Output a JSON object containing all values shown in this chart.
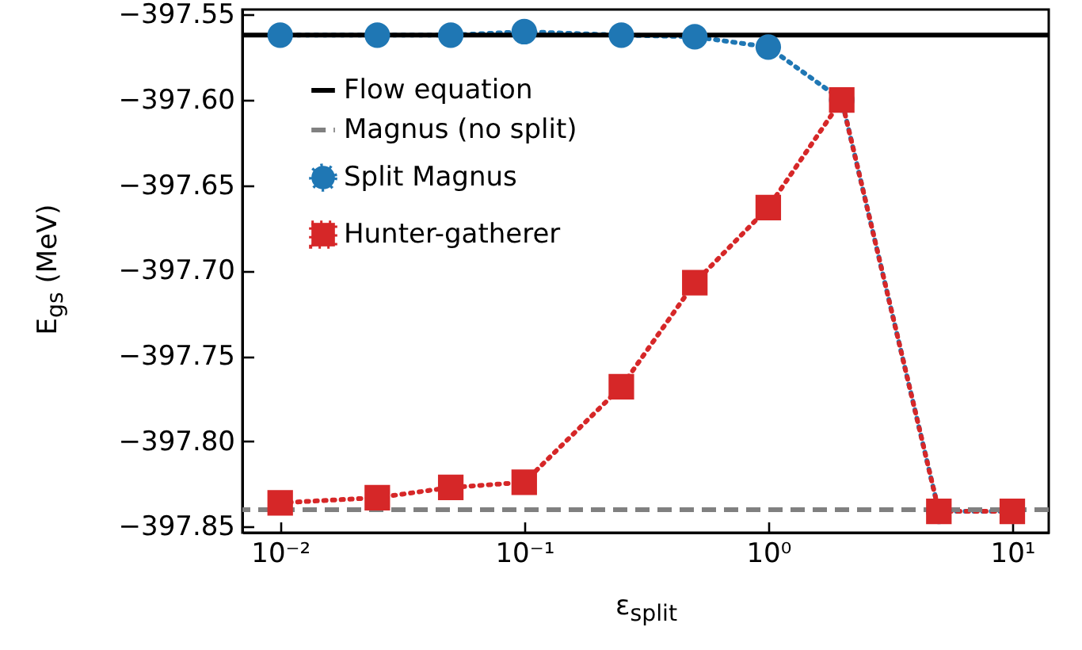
{
  "chart_data": {
    "type": "line",
    "xlabel": "ε$_{split}$",
    "ylabel": "E$_{gs}$ (MeV)",
    "log": "x",
    "x": [
      0.01,
      0.025,
      0.05,
      0.1,
      0.25,
      0.5,
      1,
      2,
      5,
      10
    ],
    "xlim": [
      0.007,
      14.1
    ],
    "ylim": [
      -397.8535,
      -397.547
    ],
    "xticks": [
      {
        "value": 0.01,
        "label": "10⁻²"
      },
      {
        "value": 0.1,
        "label": "10⁻¹"
      },
      {
        "value": 1,
        "label": "10⁰"
      },
      {
        "value": 10,
        "label": "10¹"
      }
    ],
    "yticks": [
      {
        "value": -397.85,
        "label": "−397.85"
      },
      {
        "value": -397.8,
        "label": "−397.80"
      },
      {
        "value": -397.75,
        "label": "−397.75"
      },
      {
        "value": -397.7,
        "label": "−397.70"
      },
      {
        "value": -397.65,
        "label": "−397.65"
      },
      {
        "value": -397.6,
        "label": "−397.60"
      },
      {
        "value": -397.55,
        "label": "−397.55"
      }
    ],
    "legend": "top left",
    "grid": false,
    "ref_lines": [
      {
        "axis": "y",
        "value": -397.562,
        "label": "Flow equation",
        "color": "#000000",
        "line_style": "solid"
      },
      {
        "axis": "y",
        "value": -397.84,
        "label": "Magnus (no split)",
        "color": "#808080",
        "line_style": "dashed"
      }
    ],
    "series": [
      {
        "name": "Split Magnus",
        "color": "#1f77b4",
        "values": [
          -397.562,
          -397.562,
          -397.562,
          -397.56,
          -397.562,
          -397.563,
          -397.569,
          -397.6,
          -397.841,
          -397.841
        ],
        "marker": "circle",
        "line_style": "dotted"
      },
      {
        "name": "Hunter-gatherer",
        "color": "#d62728",
        "values": [
          -397.836,
          -397.833,
          -397.827,
          -397.824,
          -397.768,
          -397.707,
          -397.663,
          -397.6,
          -397.841,
          -397.841
        ],
        "marker": "square",
        "line_style": "dotted"
      }
    ]
  }
}
